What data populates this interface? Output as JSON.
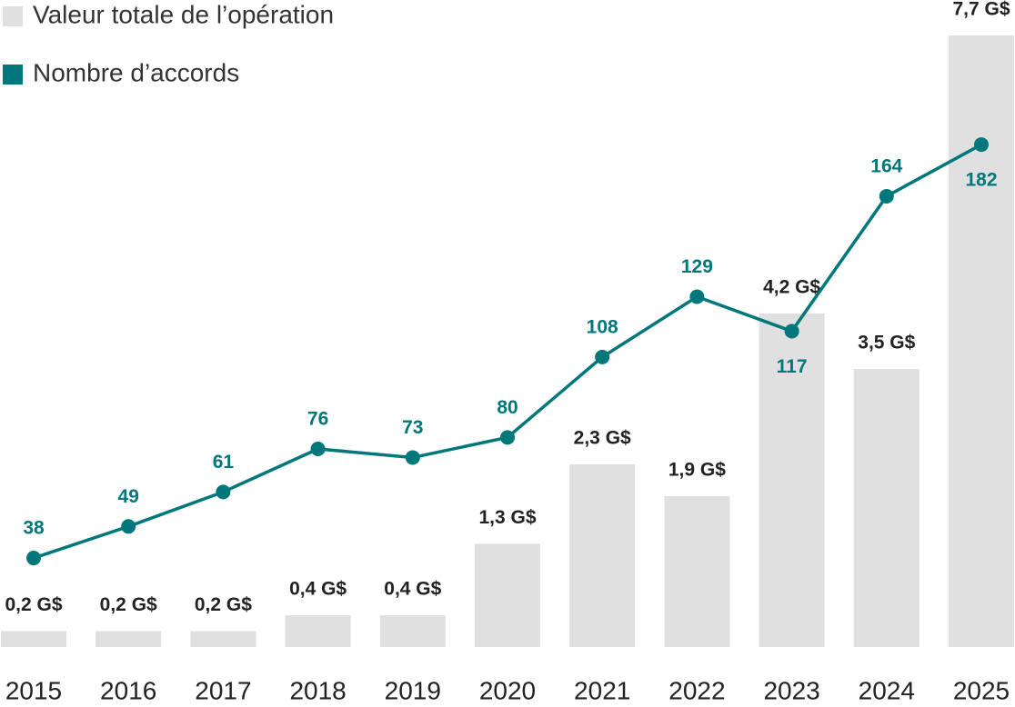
{
  "chart_data": {
    "type": "bar",
    "categories": [
      "2015",
      "2016",
      "2017",
      "2018",
      "2019",
      "2020",
      "2021",
      "2022",
      "2023",
      "2024",
      "2025"
    ],
    "series": [
      {
        "name": "Valeur totale de l’opération",
        "type": "bar",
        "color": "#e0e0e0",
        "values": [
          0.2,
          0.2,
          0.2,
          0.4,
          0.4,
          1.3,
          2.3,
          1.9,
          4.2,
          3.5,
          7.7
        ],
        "value_labels": [
          "0,2 G$",
          "0,2 G$",
          "0,2 G$",
          "0,4 G$",
          "0,4 G$",
          "1,3 G$",
          "2,3 G$",
          "1,9 G$",
          "4,2 G$",
          "3,5 G$",
          "7,7 G$"
        ]
      },
      {
        "name": "Nombre d’accords",
        "type": "line",
        "axis": "y2",
        "color": "#00777a",
        "values": [
          38,
          49,
          61,
          76,
          73,
          80,
          108,
          129,
          117,
          164,
          182
        ]
      }
    ],
    "ylim": [
      0,
      7.7
    ],
    "y2lim": [
      7,
      220
    ],
    "legend": "top-left"
  }
}
